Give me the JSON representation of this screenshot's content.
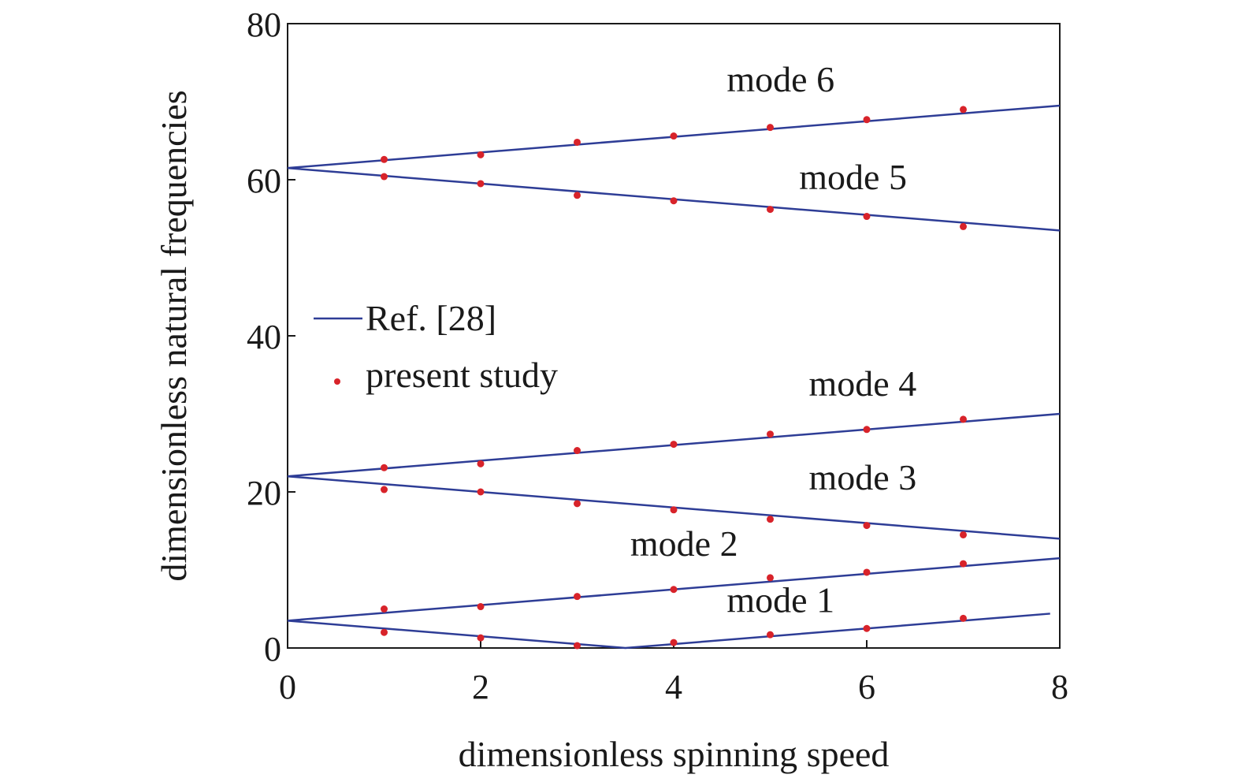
{
  "chart_data": {
    "type": "line",
    "title": "",
    "xlabel": "dimensionless spinning speed",
    "ylabel": "dimensionless natural frequencies",
    "xlim": [
      0,
      8
    ],
    "ylim": [
      0,
      80
    ],
    "xticks": [
      "0",
      "2",
      "4",
      "6",
      "8"
    ],
    "yticks": [
      "0",
      "20",
      "40",
      "60",
      "80"
    ],
    "grid": false,
    "legend": {
      "placement": "center-left",
      "entries": [
        {
          "label": "Ref. [28]",
          "style": "line",
          "color": "#2e3d96"
        },
        {
          "label": "present study",
          "style": "dot",
          "color": "#d8232a"
        }
      ]
    },
    "series_lines": [
      {
        "mode": "mode 1",
        "x": [
          0,
          3.5,
          7.9
        ],
        "y": [
          3.5,
          0,
          4.4
        ]
      },
      {
        "mode": "mode 2",
        "x": [
          0,
          8
        ],
        "y": [
          3.5,
          11.5
        ]
      },
      {
        "mode": "mode 3",
        "x": [
          0,
          8
        ],
        "y": [
          22,
          14
        ]
      },
      {
        "mode": "mode 4",
        "x": [
          0,
          8
        ],
        "y": [
          22,
          30
        ]
      },
      {
        "mode": "mode 5",
        "x": [
          0,
          8
        ],
        "y": [
          61.5,
          53.5
        ]
      },
      {
        "mode": "mode 6",
        "x": [
          0,
          8
        ],
        "y": [
          61.5,
          69.5
        ]
      }
    ],
    "series_points": [
      {
        "mode": "mode 1",
        "x": [
          1,
          2,
          3,
          4,
          5,
          6,
          7
        ],
        "y": [
          2.0,
          1.3,
          0.3,
          0.7,
          1.7,
          2.5,
          3.8
        ]
      },
      {
        "mode": "mode 2",
        "x": [
          1,
          2,
          3,
          4,
          5,
          6,
          7
        ],
        "y": [
          5.0,
          5.3,
          6.6,
          7.5,
          9.0,
          9.7,
          10.8
        ]
      },
      {
        "mode": "mode 3",
        "x": [
          1,
          2,
          3,
          4,
          5,
          6,
          7
        ],
        "y": [
          20.3,
          20.0,
          18.5,
          17.7,
          16.5,
          15.7,
          14.5
        ]
      },
      {
        "mode": "mode 4",
        "x": [
          1,
          2,
          3,
          4,
          5,
          6,
          7
        ],
        "y": [
          23.1,
          23.6,
          25.3,
          26.1,
          27.4,
          28.0,
          29.3
        ]
      },
      {
        "mode": "mode 5",
        "x": [
          1,
          2,
          3,
          4,
          5,
          6,
          7
        ],
        "y": [
          60.4,
          59.5,
          58.0,
          57.3,
          56.2,
          55.3,
          54.0
        ]
      },
      {
        "mode": "mode 6",
        "x": [
          1,
          2,
          3,
          4,
          5,
          6,
          7
        ],
        "y": [
          62.6,
          63.2,
          64.8,
          65.6,
          66.7,
          67.7,
          69.0
        ]
      }
    ],
    "mode_labels": [
      {
        "text": "mode 1",
        "x": 4.55,
        "y": 4.6
      },
      {
        "text": "mode 2",
        "x": 3.55,
        "y": 11.8
      },
      {
        "text": "mode 3",
        "x": 5.4,
        "y": 20.3
      },
      {
        "text": "mode 4",
        "x": 5.4,
        "y": 32.3
      },
      {
        "text": "mode 5",
        "x": 5.3,
        "y": 58.8
      },
      {
        "text": "mode 6",
        "x": 4.55,
        "y": 71.3
      }
    ],
    "colors": {
      "line": "#2e3d96",
      "point": "#d8232a",
      "axis": "#1a1a1a"
    }
  }
}
